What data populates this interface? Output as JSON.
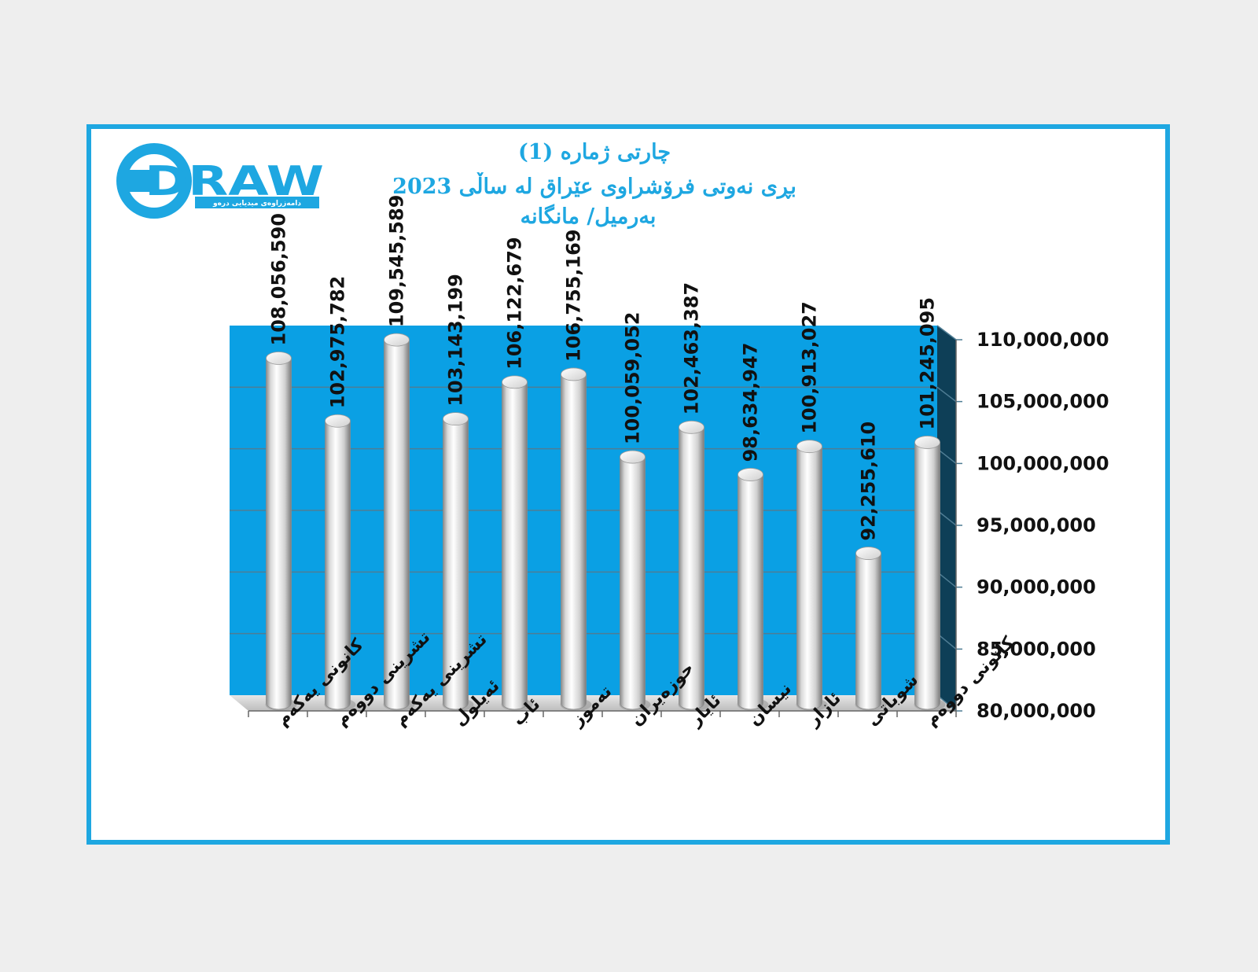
{
  "logo": {
    "word": "DRAW",
    "tagline": "دامەزراوەی میدیایی درەو"
  },
  "title": {
    "line1": "چارتی ژمارە (1)",
    "line2": "بڕی نەوتی فرۆشراوی عێراق لە ساڵی 2023",
    "line3": "بەرمیل/ مانگانە"
  },
  "colors": {
    "accent": "#1ea7e1",
    "plot_background": "#0aa0e4",
    "side_wall": "#0e3f57",
    "bar": "#f2f2f2",
    "gridline": "#6b8fa3"
  },
  "chart_data": {
    "type": "bar",
    "style": "3d-cylinder",
    "categories": [
      "کانونی یەکەم",
      "تشرینی دووەم",
      "تشرینی یەکەم",
      "ئەیلول",
      "ئاب",
      "تەموز",
      "حوزەیران",
      "ئایار",
      "نیسان",
      "ئازار",
      "شوباتی",
      "کانونی دووەم"
    ],
    "values": [
      108056590,
      102975782,
      109545589,
      103143199,
      106122679,
      106755169,
      100059052,
      102463387,
      98634947,
      100913027,
      92255610,
      101245095
    ],
    "value_labels": [
      "108,056,590",
      "102,975,782",
      "109,545,589",
      "103,143,199",
      "106,122,679",
      "106,755,169",
      "100,059,052",
      "102,463,387",
      "98,634,947",
      "100,913,027",
      "92,255,610",
      "101,245,095"
    ],
    "ylim": [
      80000000,
      110000000
    ],
    "y_ticks": [
      80000000,
      85000000,
      90000000,
      95000000,
      100000000,
      105000000,
      110000000
    ],
    "y_tick_labels": [
      "80,000,000",
      "85,000,000",
      "90,000,000",
      "95,000,000",
      "100,000,000",
      "105,000,000",
      "110,000,000"
    ],
    "y_axis_side": "right",
    "grid": true,
    "legend": "none"
  }
}
